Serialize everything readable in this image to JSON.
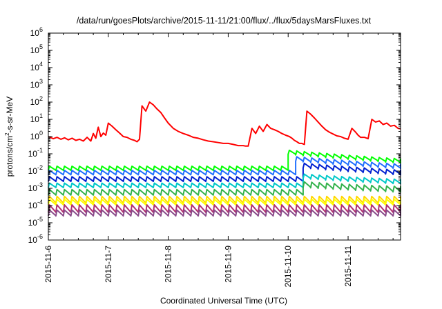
{
  "chart_data": {
    "type": "line",
    "title": "/data/run/goesPlots/archive/2015-11-11/21:00/flux/../flux/5daysMarsFluxes.txt",
    "xlabel": "Coordinated Universal Time (UTC)",
    "ylabel": "protons/cm2-s-sr-MeV",
    "ylabel_parts": {
      "base": "protons/cm",
      "sup": "2",
      "rest": "-s-sr-MeV"
    },
    "xlim": [
      "2015-11-06T00:00",
      "2015-11-11T21:00"
    ],
    "ylim": [
      1e-06,
      1000000.0
    ],
    "yscale": "log",
    "x_ticks": [
      "2015-11-6",
      "2015-11-7",
      "2015-11-8",
      "2015-11-9",
      "2015-11-10",
      "2015-11-11"
    ],
    "y_ticks": [
      {
        "base": "10",
        "exp": "-6"
      },
      {
        "base": "10",
        "exp": "-5"
      },
      {
        "base": "10",
        "exp": "-4"
      },
      {
        "base": "10",
        "exp": "-3"
      },
      {
        "base": "10",
        "exp": "-2"
      },
      {
        "base": "10",
        "exp": "-1"
      },
      {
        "base": "10",
        "exp": "0"
      },
      {
        "base": "10",
        "exp": "1"
      },
      {
        "base": "10",
        "exp": "2"
      },
      {
        "base": "10",
        "exp": "3"
      },
      {
        "base": "10",
        "exp": "4"
      },
      {
        "base": "10",
        "exp": "5"
      },
      {
        "base": "10",
        "exp": "6"
      }
    ],
    "grid": false,
    "legend": "none",
    "series": [
      {
        "color": "#ff0000",
        "x": [
          "2015-11-06T00:00",
          "2015-11-06T02:00",
          "2015-11-06T03:30",
          "2015-11-06T05:00",
          "2015-11-06T06:30",
          "2015-11-06T08:00",
          "2015-11-06T09:30",
          "2015-11-06T11:00",
          "2015-11-06T12:30",
          "2015-11-06T14:00",
          "2015-11-06T15:30",
          "2015-11-06T17:00",
          "2015-11-06T18:00",
          "2015-11-06T19:00",
          "2015-11-06T20:00",
          "2015-11-06T21:00",
          "2015-11-06T22:00",
          "2015-11-06T23:00",
          "2015-11-07T00:00",
          "2015-11-07T01:30",
          "2015-11-07T03:00",
          "2015-11-07T04:30",
          "2015-11-07T06:00",
          "2015-11-07T07:30",
          "2015-11-07T09:00",
          "2015-11-07T10:30",
          "2015-11-07T11:30",
          "2015-11-07T12:30",
          "2015-11-07T13:30",
          "2015-11-07T15:00",
          "2015-11-07T16:30",
          "2015-11-07T18:00",
          "2015-11-07T19:30",
          "2015-11-07T21:00",
          "2015-11-07T22:30",
          "2015-11-08T00:00",
          "2015-11-08T02:00",
          "2015-11-08T04:00",
          "2015-11-08T06:00",
          "2015-11-08T08:00",
          "2015-11-08T10:00",
          "2015-11-08T12:00",
          "2015-11-08T14:00",
          "2015-11-08T16:00",
          "2015-11-08T18:00",
          "2015-11-08T20:00",
          "2015-11-08T22:00",
          "2015-11-09T00:00",
          "2015-11-09T02:00",
          "2015-11-09T04:00",
          "2015-11-09T06:00",
          "2015-11-09T07:00",
          "2015-11-09T08:00",
          "2015-11-09T09:30",
          "2015-11-09T11:00",
          "2015-11-09T12:30",
          "2015-11-09T14:00",
          "2015-11-09T15:30",
          "2015-11-09T17:00",
          "2015-11-09T18:30",
          "2015-11-09T20:00",
          "2015-11-09T21:30",
          "2015-11-09T23:00",
          "2015-11-10T00:30",
          "2015-11-10T01:30",
          "2015-11-10T02:30",
          "2015-11-10T03:30",
          "2015-11-10T04:30",
          "2015-11-10T05:30",
          "2015-11-10T06:30",
          "2015-11-10T07:30",
          "2015-11-10T09:00",
          "2015-11-10T10:30",
          "2015-11-10T12:00",
          "2015-11-10T13:30",
          "2015-11-10T15:00",
          "2015-11-10T16:30",
          "2015-11-10T18:00",
          "2015-11-10T19:30",
          "2015-11-10T21:00",
          "2015-11-10T22:30",
          "2015-11-11T00:00",
          "2015-11-11T01:30",
          "2015-11-11T03:00",
          "2015-11-11T04:00",
          "2015-11-11T05:00",
          "2015-11-11T06:30",
          "2015-11-11T08:00",
          "2015-11-11T09:30",
          "2015-11-11T11:00",
          "2015-11-11T12:30",
          "2015-11-11T14:00",
          "2015-11-11T15:30",
          "2015-11-11T17:00",
          "2015-11-11T18:30",
          "2015-11-11T20:00",
          "2015-11-11T21:00"
        ],
        "y": [
          1.0,
          0.75,
          0.9,
          0.7,
          0.85,
          0.65,
          0.8,
          0.6,
          0.7,
          0.55,
          0.9,
          0.55,
          1.5,
          0.8,
          3.5,
          1.0,
          1.6,
          1.2,
          6.0,
          4.0,
          2.5,
          1.6,
          1.0,
          0.9,
          0.7,
          0.6,
          0.5,
          0.7,
          60,
          30,
          100,
          70,
          40,
          25,
          12,
          6,
          3,
          2,
          1.5,
          1.2,
          0.9,
          0.8,
          0.65,
          0.55,
          0.5,
          0.45,
          0.4,
          0.4,
          0.35,
          0.3,
          0.3,
          0.28,
          0.28,
          3,
          1.5,
          4,
          2,
          5,
          3,
          2.5,
          2,
          1.5,
          1.2,
          1,
          0.8,
          0.6,
          0.5,
          0.4,
          0.4,
          0.35,
          30,
          20,
          12,
          7,
          4,
          2.5,
          1.8,
          1.4,
          1.1,
          1.0,
          0.8,
          0.7,
          3,
          1.8,
          1.2,
          0.9,
          0.9,
          0.75,
          10,
          7,
          8,
          5,
          6,
          4,
          4.5,
          3,
          2.8
        ]
      },
      {
        "color": "#00ff00",
        "baseline": 0.011,
        "amplitude": 0.008,
        "event": {
          "from": "2015-11-10T00:00",
          "peak": 0.16
        }
      },
      {
        "color": "#1f6fff",
        "baseline": 0.006,
        "amplitude": 0.005,
        "event": {
          "from": "2015-11-10T02:00",
          "peak": 0.07
        }
      },
      {
        "color": "#0020d0",
        "baseline": 0.0025,
        "amplitude": 0.0022,
        "event": {
          "from": "2015-11-10T04:00",
          "peak": 0.03
        }
      },
      {
        "color": "#00c8c8",
        "baseline": 0.0011,
        "amplitude": 0.0009,
        "event": {
          "from": "2015-11-10T04:00",
          "peak": 0.007
        }
      },
      {
        "color": "#33b24c",
        "baseline": 0.0004,
        "amplitude": 0.00045,
        "event": {
          "from": "2015-11-10T04:00",
          "peak": 0.0025
        }
      },
      {
        "color": "#ffd700",
        "baseline": 0.00014,
        "amplitude": 0.0002
      },
      {
        "color": "#ffff00",
        "baseline": 0.00011,
        "amplitude": 0.00012
      },
      {
        "color": "#b03070",
        "baseline": 4e-05,
        "amplitude": 7e-05
      },
      {
        "color": "#8a4a8a",
        "baseline": 2.5e-05,
        "amplitude": 3e-05
      }
    ]
  }
}
